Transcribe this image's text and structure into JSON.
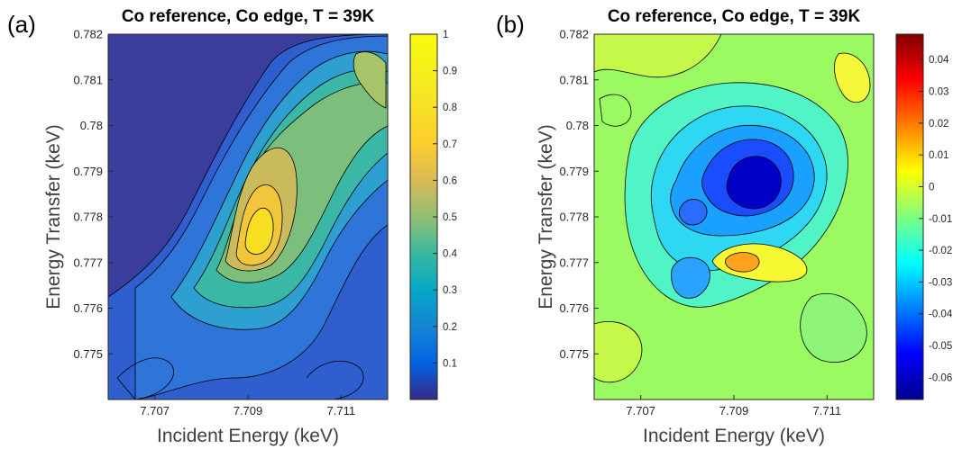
{
  "figure": {
    "panel_a_label": "(a)",
    "panel_b_label": "(b)"
  },
  "chart_data": [
    {
      "type": "heatmap",
      "title": "Co reference, Co edge, T = 39K",
      "xlabel": "Incident Energy (keV)",
      "ylabel": "Energy Transfer (keV)",
      "xlim": [
        7.706,
        7.712
      ],
      "ylim": [
        0.774,
        0.782
      ],
      "xticks": [
        7.707,
        7.709,
        7.711
      ],
      "xtick_labels": [
        "7.707",
        "7.709",
        "7.711"
      ],
      "yticks": [
        0.775,
        0.776,
        0.777,
        0.778,
        0.779,
        0.78,
        0.781,
        0.782
      ],
      "ytick_labels": [
        "0.775",
        "0.776",
        "0.777",
        "0.778",
        "0.779",
        "0.78",
        "0.781",
        "0.782"
      ],
      "colormap": "parula",
      "colorbar": {
        "range": [
          0,
          1
        ],
        "ticks": [
          0.1,
          0.2,
          0.3,
          0.4,
          0.5,
          0.6,
          0.7,
          0.8,
          0.9,
          1
        ],
        "tick_labels": [
          "0.1",
          "0.2",
          "0.3",
          "0.4",
          "0.5",
          "0.6",
          "0.7",
          "0.8",
          "0.9",
          "1"
        ]
      },
      "features": [
        {
          "kind": "peak",
          "x": 7.709,
          "y": 0.7778,
          "value": 0.95
        },
        {
          "kind": "ridge",
          "from": [
            7.7095,
            0.7783
          ],
          "to": [
            7.7115,
            0.7811
          ],
          "value": 0.6
        }
      ],
      "contour_levels": 20
    },
    {
      "type": "heatmap",
      "title": "Co reference, Co edge, T = 39K",
      "xlabel": "Incident Energy (keV)",
      "ylabel": "Energy Transfer (keV)",
      "xlim": [
        7.706,
        7.712
      ],
      "ylim": [
        0.774,
        0.782
      ],
      "xticks": [
        7.707,
        7.709,
        7.711
      ],
      "xtick_labels": [
        "7.707",
        "7.709",
        "7.711"
      ],
      "yticks": [
        0.775,
        0.776,
        0.777,
        0.778,
        0.779,
        0.78,
        0.781,
        0.782
      ],
      "ytick_labels": [
        "0.775",
        "0.776",
        "0.777",
        "0.778",
        "0.779",
        "0.78",
        "0.781",
        "0.782"
      ],
      "colormap": "jet",
      "colorbar": {
        "range": [
          -0.067,
          0.048
        ],
        "ticks": [
          0.04,
          0.03,
          0.02,
          0.01,
          0,
          -0.01,
          -0.02,
          -0.03,
          -0.04,
          -0.05,
          -0.06
        ],
        "tick_labels": [
          "0.04",
          "0.03",
          "0.02",
          "0.01",
          "0",
          "-0.01",
          "-0.02",
          "-0.03",
          "-0.04",
          "-0.05",
          "-0.06"
        ]
      },
      "features": [
        {
          "kind": "minimum",
          "x": 7.7096,
          "y": 0.7784,
          "value": -0.066
        },
        {
          "kind": "maximum",
          "x": 7.7092,
          "y": 0.7771,
          "value": 0.015
        },
        {
          "kind": "minimum",
          "x": 7.7081,
          "y": 0.7768,
          "value": -0.04
        }
      ],
      "contour_levels": 12
    }
  ]
}
